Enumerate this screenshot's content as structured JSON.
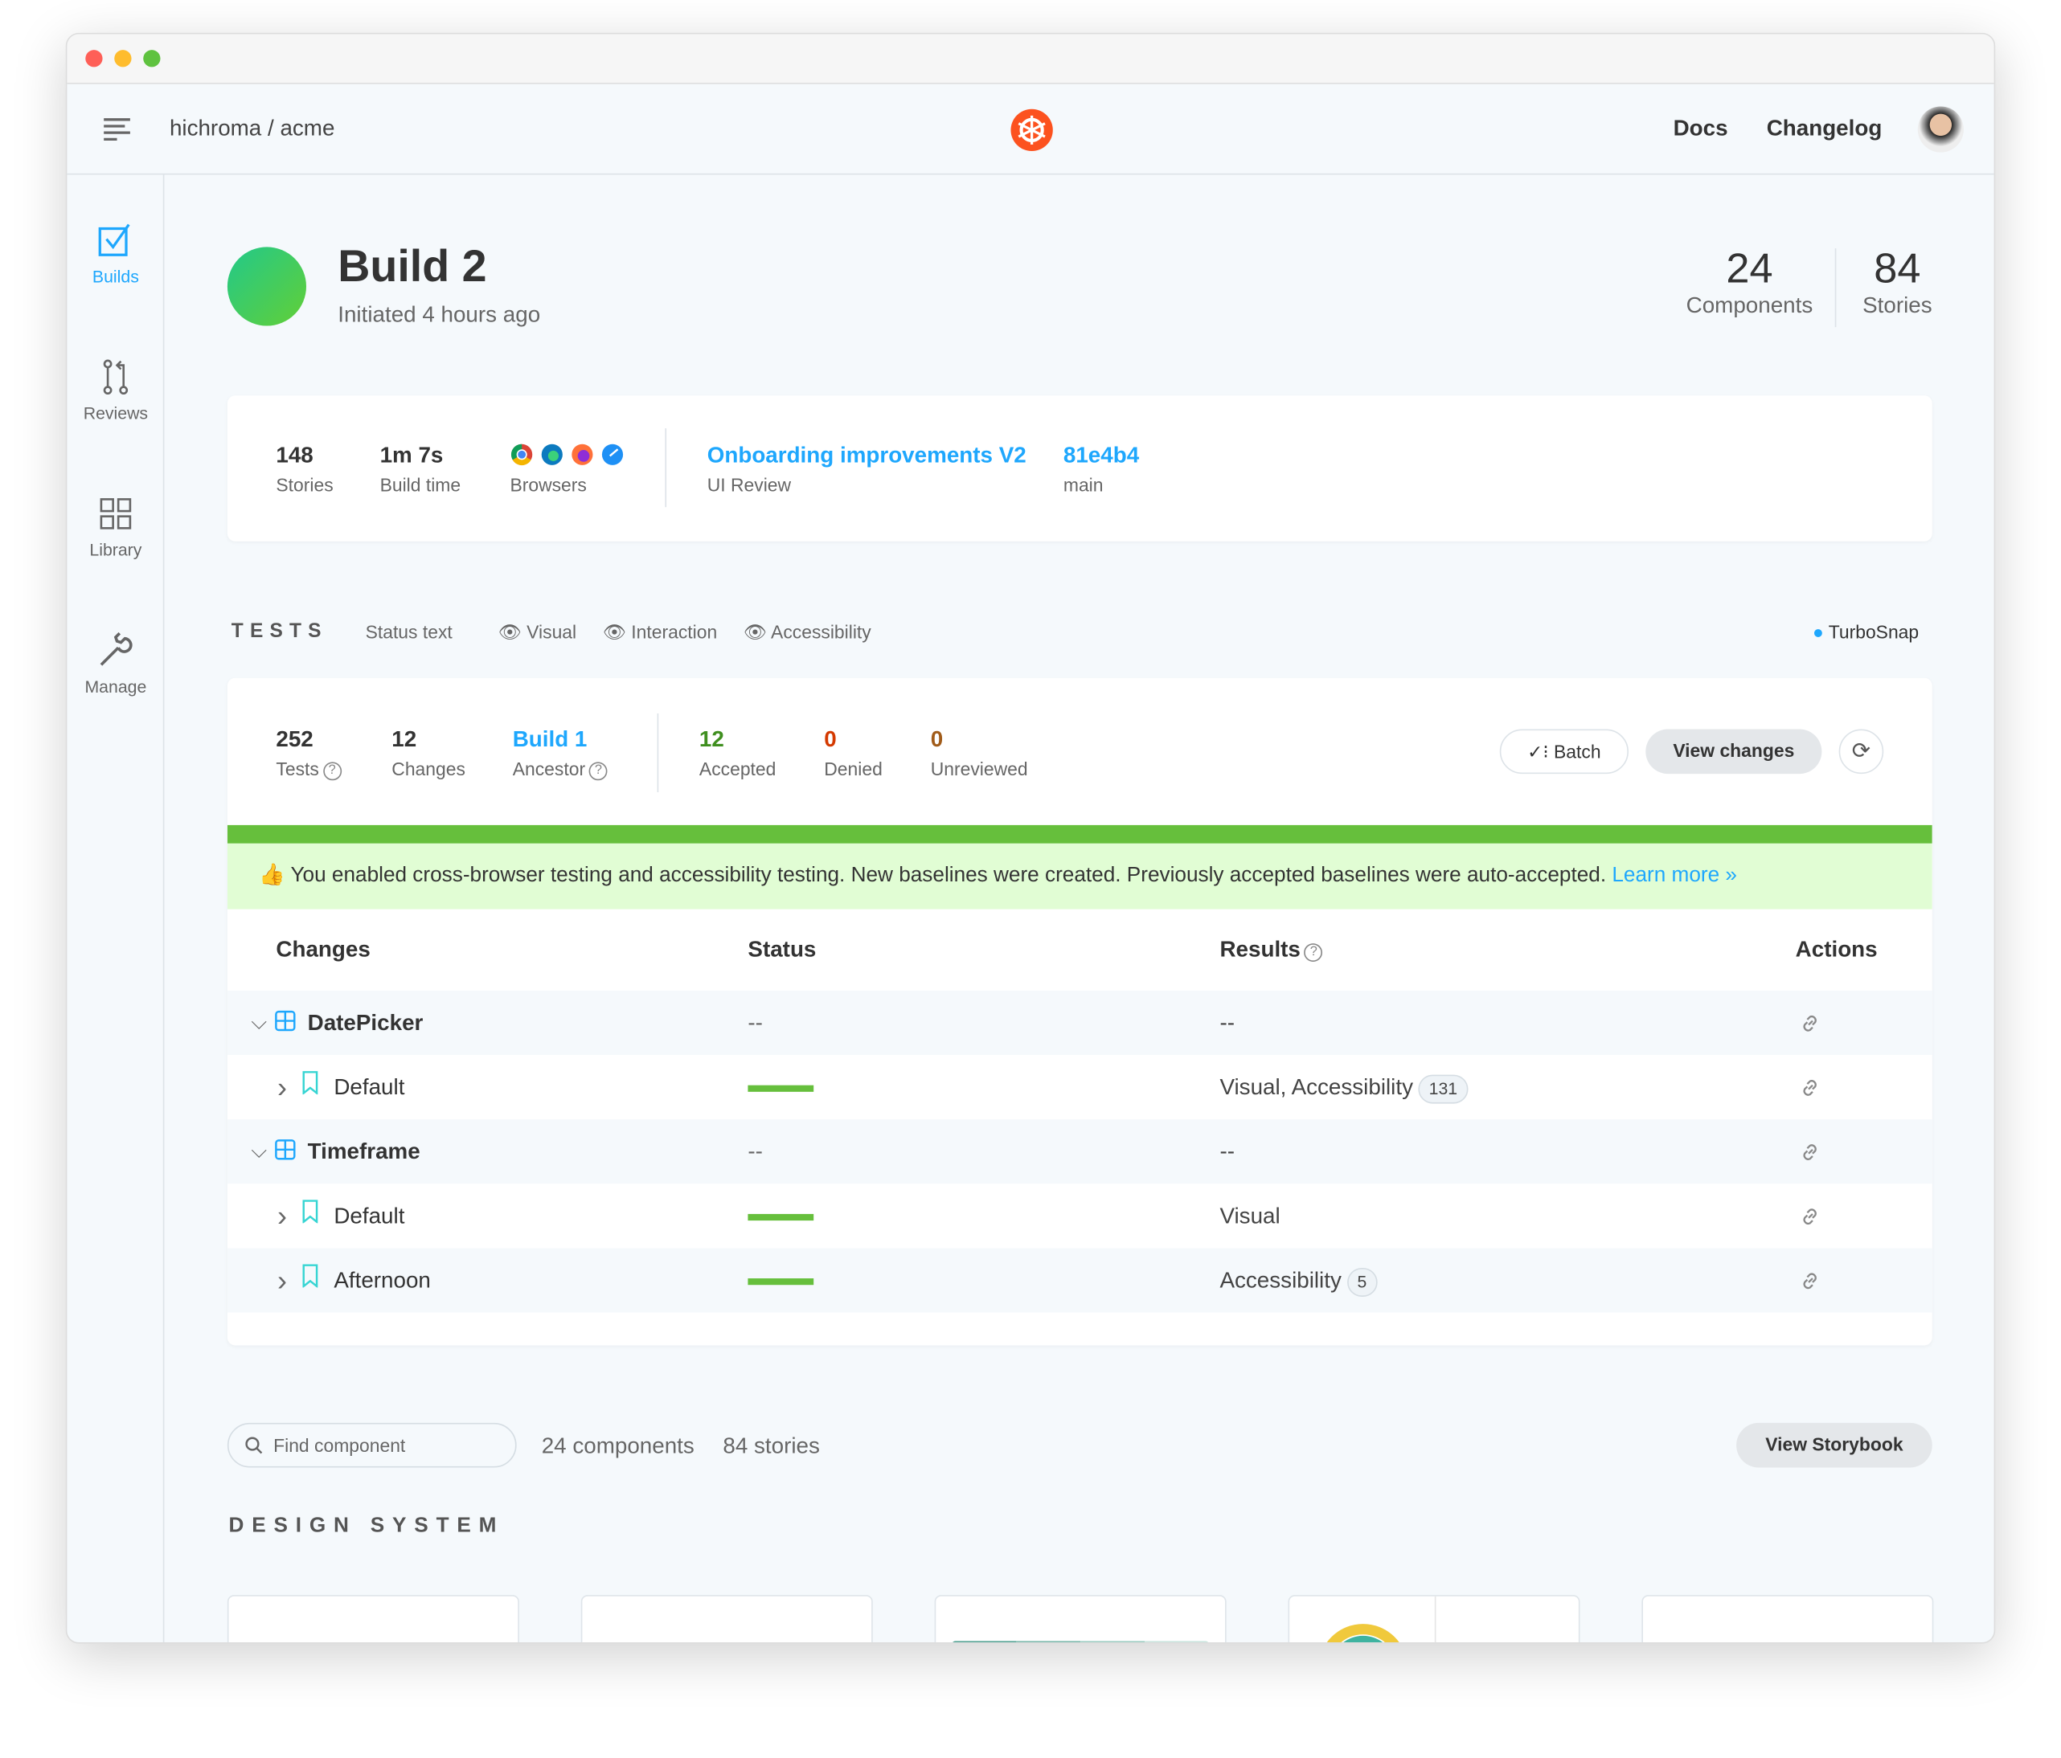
{
  "header": {
    "org": "hichroma / acme",
    "links": [
      {
        "label": "Docs"
      },
      {
        "label": "Changelog"
      }
    ],
    "brand_color": "#fc521f"
  },
  "sidebar": {
    "items": [
      {
        "label": "Builds",
        "icon": "check-square-icon",
        "active": true
      },
      {
        "label": "Reviews",
        "icon": "pull-request-icon"
      },
      {
        "label": "Library",
        "icon": "grid-icon"
      },
      {
        "label": "Manage",
        "icon": "wrench-icon"
      }
    ]
  },
  "build": {
    "title": "Build 2",
    "subtitle": "Initiated 4 hours ago",
    "status_color": "#5ccf3c",
    "components_count": "24",
    "components_label": "Components",
    "stories_count": "84",
    "stories_label": "Stories"
  },
  "summary": {
    "stories": "148",
    "stories_label": "Stories",
    "build_time": "1m 7s",
    "build_time_label": "Build time",
    "browsers_label": "Browsers",
    "browsers": [
      "chrome",
      "edge",
      "firefox",
      "safari"
    ],
    "review_title": "Onboarding improvements V2",
    "review_label": "UI Review",
    "commit": "81e4b4",
    "branch": "main"
  },
  "tests": {
    "heading": "TESTS",
    "status_text": "Status text",
    "filters": [
      "Visual",
      "Interaction",
      "Accessibility"
    ],
    "turbosnap": "TurboSnap",
    "tests_count": "252",
    "tests_label": "Tests",
    "changes_count": "12",
    "changes_label": "Changes",
    "ancestor": "Build 1",
    "ancestor_label": "Ancestor",
    "accepted": "12",
    "accepted_label": "Accepted",
    "denied": "0",
    "denied_label": "Denied",
    "unreviewed": "0",
    "unreviewed_label": "Unreviewed",
    "batch_label": "Batch",
    "view_changes_label": "View changes",
    "progress": 100,
    "banner_emoji": "👍",
    "banner": "You enabled cross-browser testing and accessibility testing. New baselines were created. Previously accepted baselines were auto-accepted.",
    "learn_more": "Learn more »"
  },
  "table": {
    "columns": [
      "Changes",
      "Status",
      "Results",
      "Actions"
    ],
    "rows": [
      {
        "type": "component",
        "name": "DatePicker",
        "status": "--",
        "results": "--"
      },
      {
        "type": "story",
        "name": "Default",
        "status": "bar",
        "results": "Visual,  Accessibility",
        "badge": "131"
      },
      {
        "type": "component",
        "name": "Timeframe",
        "status": "--",
        "results": "--"
      },
      {
        "type": "story",
        "name": "Default",
        "status": "bar",
        "results": "Visual",
        "badge": ""
      },
      {
        "type": "story",
        "name": "Afternoon",
        "status": "bar",
        "results": "Accessibility",
        "badge": "5"
      }
    ]
  },
  "library": {
    "search_placeholder": "Find component",
    "components": "24 components",
    "stories": "84 stories",
    "view_storybook": "View Storybook",
    "section": "DESIGN SYSTEM"
  }
}
